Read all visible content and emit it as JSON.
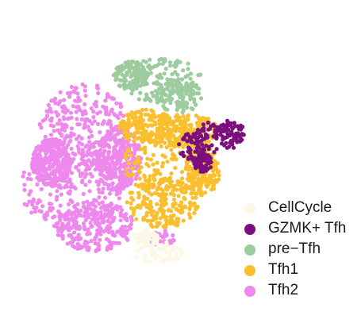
{
  "chart_data": {
    "type": "scatter",
    "title": "",
    "xlabel": "",
    "ylabel": "",
    "axes_visible": false,
    "grid": false,
    "legend_position": "right",
    "series": [
      {
        "name": "CellCycle",
        "color": "#fbf8e6"
      },
      {
        "name": "GZMK+ Tfh",
        "color": "#7b0f7e"
      },
      {
        "name": "pre−Tfh",
        "color": "#9ccc9e"
      },
      {
        "name": "Tfh1",
        "color": "#f9bf2e"
      },
      {
        "name": "Tfh2",
        "color": "#ee88ec"
      }
    ]
  }
}
